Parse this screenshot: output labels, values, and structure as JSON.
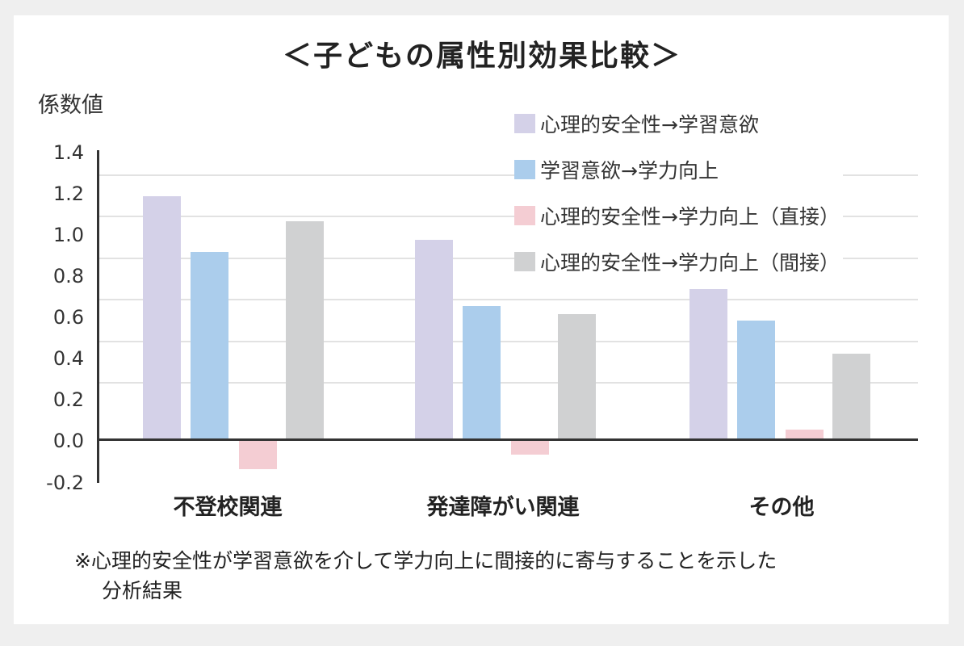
{
  "title": "＜子どもの属性別効果比較＞",
  "colors": {
    "series_1": "#d4d1e8",
    "series_2": "#abcdec",
    "series_3": "#f4cdd3",
    "series_4": "#d0d1d2",
    "axis": "#333333",
    "grid": "#e2e2e2",
    "background": "#efefef",
    "panel": "#ffffff"
  },
  "chart_data": {
    "type": "bar",
    "title": "＜子どもの属性別効果比較＞",
    "xlabel": "",
    "ylabel": "係数値",
    "ylim": [
      -0.2,
      1.4
    ],
    "yticks": [
      "1.4",
      "1.2",
      "1.0",
      "0.8",
      "0.6",
      "0.4",
      "0.2",
      "0.0",
      "-0.2"
    ],
    "grid": true,
    "legend_position": "top-right",
    "categories": [
      "不登校関連",
      "発達障がい関連",
      "その他"
    ],
    "series": [
      {
        "name": "心理的安全性→学習意欲",
        "color": "#d4d1e8",
        "values": [
          1.18,
          0.97,
          0.73
        ]
      },
      {
        "name": "学習意欲→学力向上",
        "color": "#abcdec",
        "values": [
          0.91,
          0.65,
          0.58
        ]
      },
      {
        "name": "心理的安全性→学力向上（直接）",
        "color": "#f4cdd3",
        "values": [
          -0.14,
          -0.07,
          0.05
        ]
      },
      {
        "name": "心理的安全性→学力向上（間接）",
        "color": "#d0d1d2",
        "values": [
          1.06,
          0.61,
          0.42
        ]
      }
    ],
    "footnote": "※心理的安全性が学習意欲を介して学力向上に間接的に寄与することを示した分析結果"
  },
  "footnote": {
    "line1": "※心理的安全性が学習意欲を介して学力向上に間接的に寄与することを示した",
    "line2": "分析結果"
  }
}
